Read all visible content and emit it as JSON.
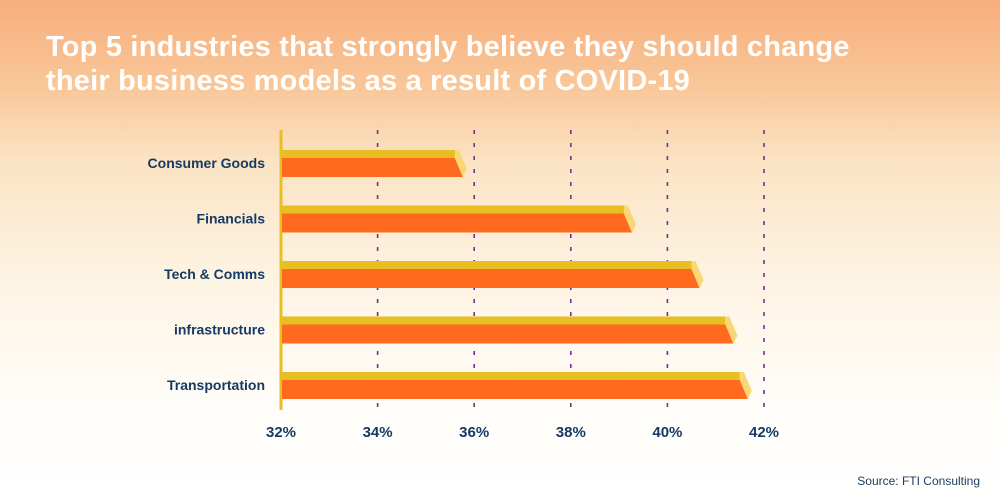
{
  "title_lines": [
    "Top 5 industries that strongly believe they should change",
    "their business models as a result of COVID-19"
  ],
  "source": "Source: FTI Consulting",
  "chart_data": {
    "type": "bar",
    "orientation": "horizontal",
    "title": "Top 5 industries that strongly believe they should change their business models as a result of COVID-19",
    "categories": [
      "Consumer Goods",
      "Financials",
      "Tech & Comms",
      "infrastructure",
      "Transportation"
    ],
    "values": [
      35.6,
      39.1,
      40.5,
      41.2,
      41.5
    ],
    "unit": "%",
    "xlim": [
      32,
      42
    ],
    "xticks": [
      "32%",
      "34%",
      "36%",
      "38%",
      "40%",
      "42%"
    ],
    "grid": "vertical dashed",
    "colors": {
      "bar_front": "#ff6a1e",
      "bar_top": "#e8bf22",
      "bar_tip": "#fad675",
      "grid": "#7a2e8c",
      "labels": "#163a63",
      "axis": "#e8bf22"
    }
  }
}
